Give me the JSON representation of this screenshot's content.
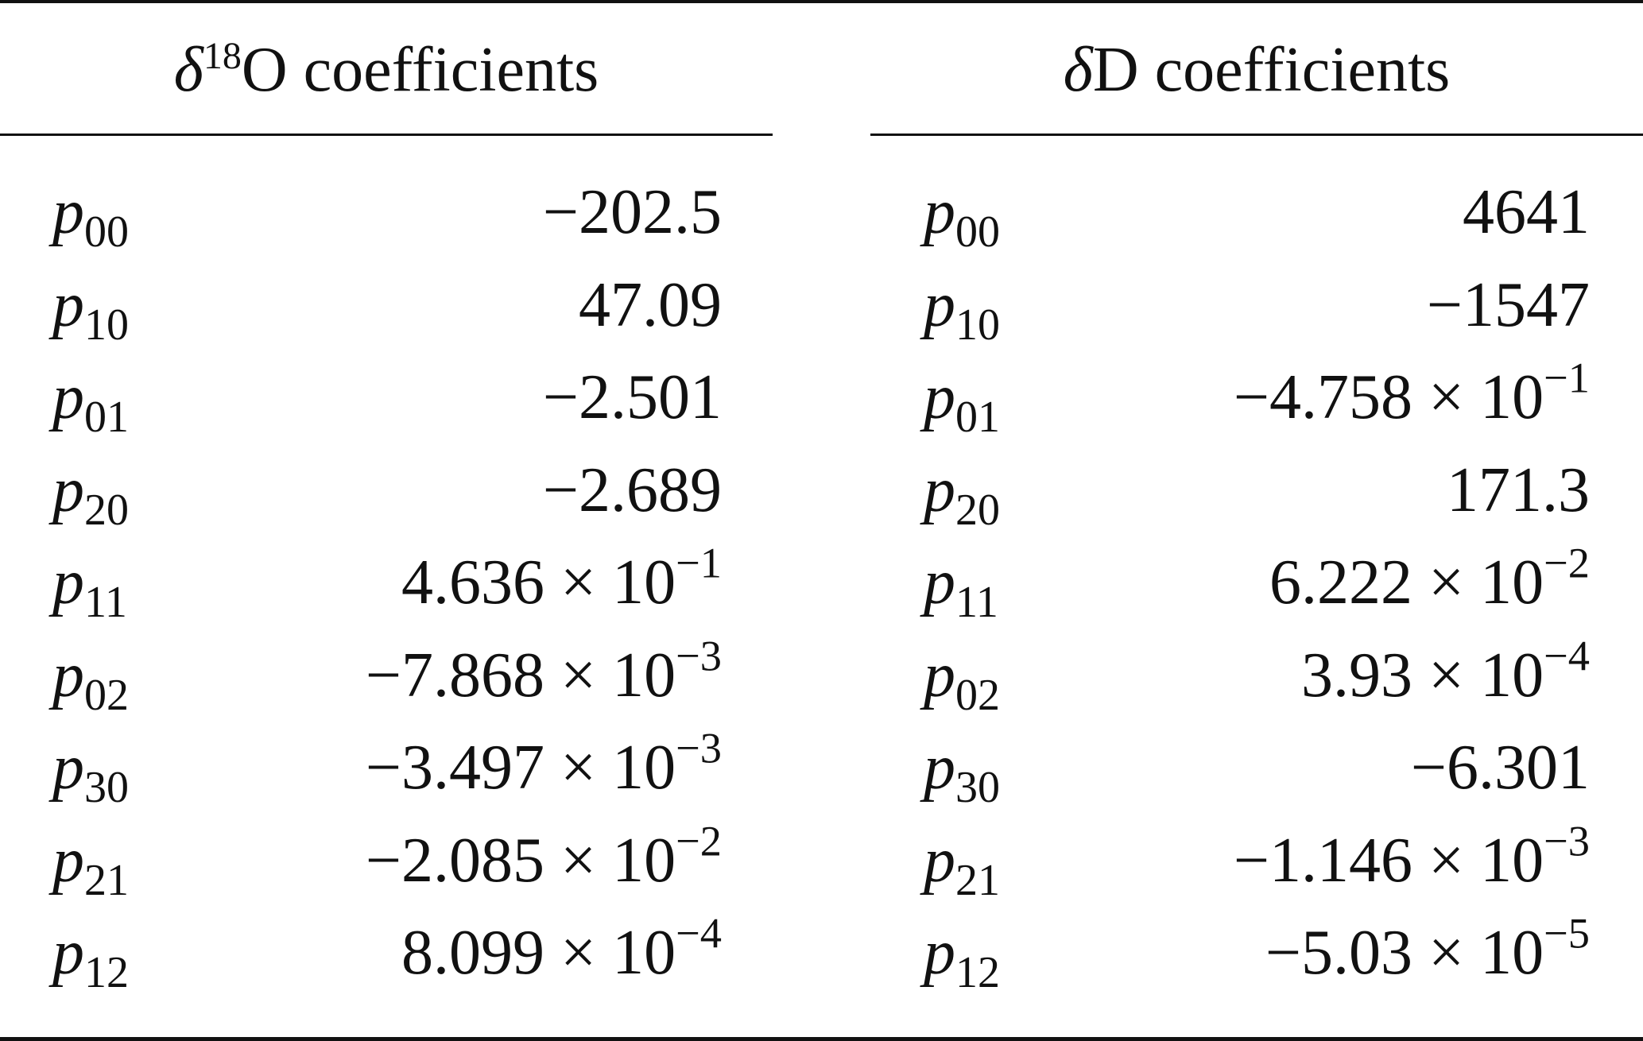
{
  "headers": {
    "left": {
      "symbol": "δ",
      "superscript": "18",
      "text": "O coefficients"
    },
    "right": {
      "symbol": "δ",
      "text": "D coefficients"
    }
  },
  "rows": [
    {
      "label": "p",
      "sub": "00",
      "o18": {
        "mantissa": "−202.5",
        "exponent": ""
      },
      "d": {
        "mantissa": "4641",
        "exponent": ""
      }
    },
    {
      "label": "p",
      "sub": "10",
      "o18": {
        "mantissa": "47.09",
        "exponent": ""
      },
      "d": {
        "mantissa": "−1547",
        "exponent": ""
      }
    },
    {
      "label": "p",
      "sub": "01",
      "o18": {
        "mantissa": "−2.501",
        "exponent": ""
      },
      "d": {
        "mantissa": "−4.758 × 10",
        "exponent": "−1"
      }
    },
    {
      "label": "p",
      "sub": "20",
      "o18": {
        "mantissa": "−2.689",
        "exponent": ""
      },
      "d": {
        "mantissa": "171.3",
        "exponent": ""
      }
    },
    {
      "label": "p",
      "sub": "11",
      "o18": {
        "mantissa": "4.636 × 10",
        "exponent": "−1"
      },
      "d": {
        "mantissa": "6.222 × 10",
        "exponent": "−2"
      }
    },
    {
      "label": "p",
      "sub": "02",
      "o18": {
        "mantissa": "−7.868 × 10",
        "exponent": "−3"
      },
      "d": {
        "mantissa": "3.93 × 10",
        "exponent": "−4"
      }
    },
    {
      "label": "p",
      "sub": "30",
      "o18": {
        "mantissa": "−3.497 × 10",
        "exponent": "−3"
      },
      "d": {
        "mantissa": "−6.301",
        "exponent": ""
      }
    },
    {
      "label": "p",
      "sub": "21",
      "o18": {
        "mantissa": "−2.085 × 10",
        "exponent": "−2"
      },
      "d": {
        "mantissa": "−1.146 × 10",
        "exponent": "−3"
      }
    },
    {
      "label": "p",
      "sub": "12",
      "o18": {
        "mantissa": "8.099 × 10",
        "exponent": "−4"
      },
      "d": {
        "mantissa": "−5.03 × 10",
        "exponent": "−5"
      }
    }
  ]
}
